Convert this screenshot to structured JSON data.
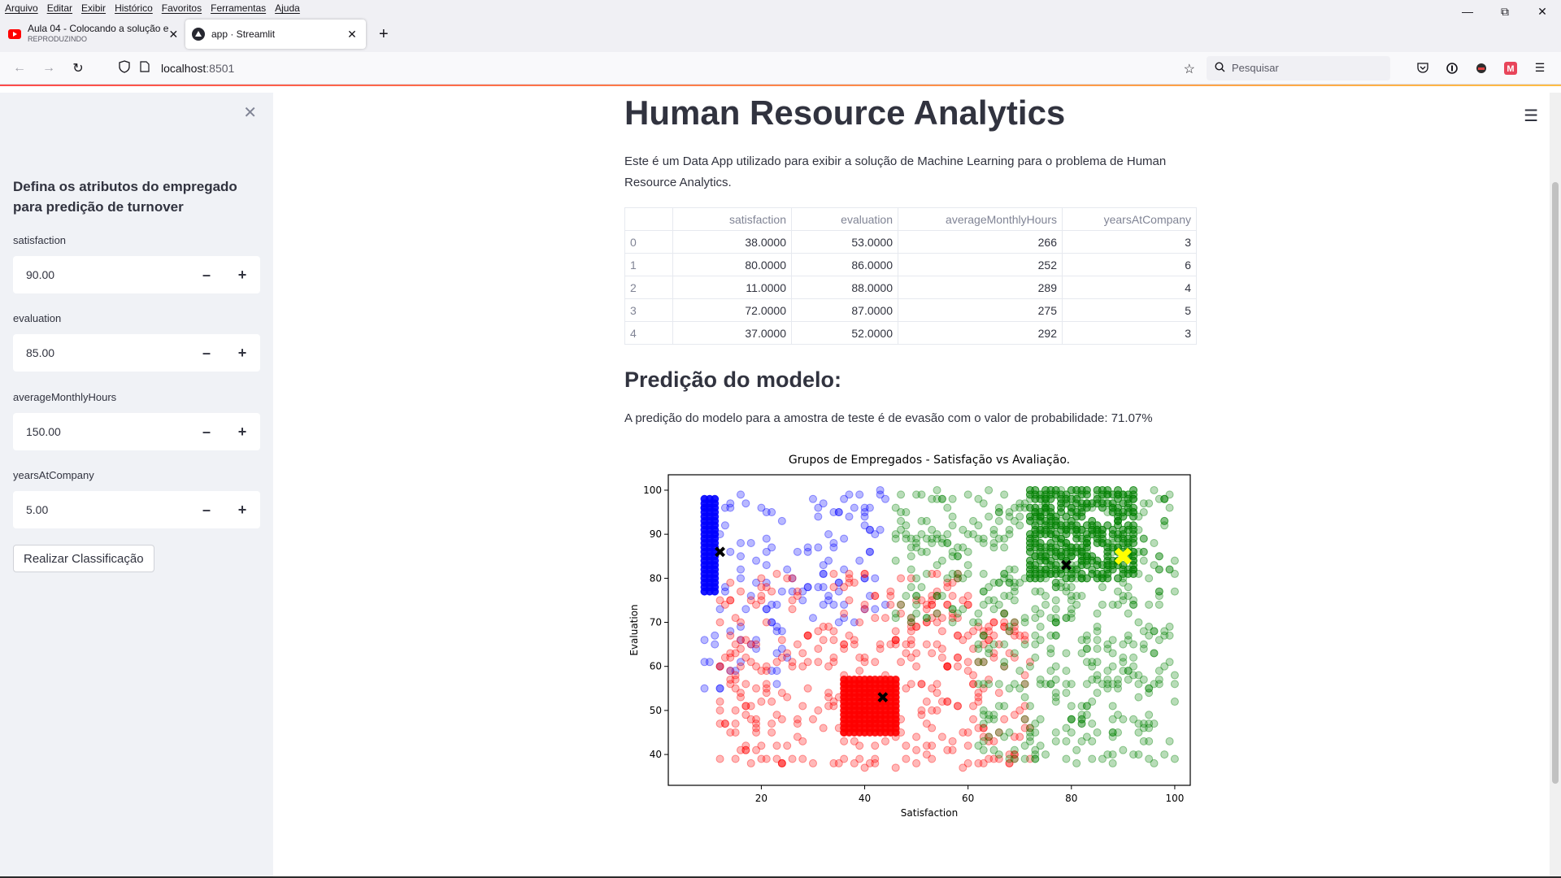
{
  "browser": {
    "menu": [
      "Arquivo",
      "Editar",
      "Exibir",
      "Histórico",
      "Favoritos",
      "Ferramentas",
      "Ajuda"
    ],
    "tabs": [
      {
        "title": "Aula 04 - Colocando a solução e",
        "subtitle": "REPRODUZINDO",
        "icon": "youtube-icon",
        "active": false
      },
      {
        "title": "app · Streamlit",
        "subtitle": "",
        "icon": "streamlit-icon",
        "active": true
      }
    ],
    "url_host": "localhost",
    "url_port": ":8501",
    "search_placeholder": "Pesquisar"
  },
  "sidebar": {
    "title": "Defina os atributos do empregado para predição de turnover",
    "fields": [
      {
        "label": "satisfaction",
        "value": "90.00"
      },
      {
        "label": "evaluation",
        "value": "85.00"
      },
      {
        "label": "averageMonthlyHours",
        "value": "150.00"
      },
      {
        "label": "yearsAtCompany",
        "value": "5.00"
      }
    ],
    "button": "Realizar Classificação"
  },
  "main": {
    "title": "Human Resource Analytics",
    "intro": "Este é um Data App utilizado para exibir a solução de Machine Learning para o problema de Human Resource Analytics.",
    "table": {
      "columns": [
        "",
        "satisfaction",
        "evaluation",
        "averageMonthlyHours",
        "yearsAtCompany"
      ],
      "rows": [
        [
          "0",
          "38.0000",
          "53.0000",
          "266",
          "3"
        ],
        [
          "1",
          "80.0000",
          "86.0000",
          "252",
          "6"
        ],
        [
          "2",
          "11.0000",
          "88.0000",
          "289",
          "4"
        ],
        [
          "3",
          "72.0000",
          "87.0000",
          "275",
          "5"
        ],
        [
          "4",
          "37.0000",
          "52.0000",
          "292",
          "3"
        ]
      ]
    },
    "subheader": "Predição do modelo:",
    "prediction": "A predição do modelo para a amostra de teste é de evasão com o valor de probabilidade: 71.07%"
  },
  "chart_data": {
    "type": "scatter",
    "title": "Grupos de Empregados - Satisfação vs Avaliação.",
    "xlabel": "Satisfaction",
    "ylabel": "Evaluation",
    "xlim": [
      2,
      103
    ],
    "ylim": [
      33,
      103.5
    ],
    "xticks": [
      20,
      40,
      60,
      80,
      100
    ],
    "yticks": [
      40,
      50,
      60,
      70,
      80,
      90,
      100
    ],
    "grid": false,
    "series": [
      {
        "cluster": 0,
        "color": "#0000ff",
        "dense_block": {
          "x": [
            9,
            11
          ],
          "y": [
            77,
            98
          ]
        },
        "spread": {
          "x": [
            9,
            44
          ],
          "y": [
            55,
            100
          ]
        }
      },
      {
        "cluster": 1,
        "color": "#ff0000",
        "dense_block": {
          "x": [
            36,
            46
          ],
          "y": [
            45,
            57
          ]
        },
        "spread": {
          "x": [
            12,
            72
          ],
          "y": [
            37,
            82
          ]
        }
      },
      {
        "cluster": 2,
        "color": "#008000",
        "dense_block": {
          "x": [
            72,
            92
          ],
          "y": [
            80,
            100
          ]
        },
        "spread": {
          "x": [
            46,
            100
          ],
          "y": [
            38,
            100
          ]
        }
      }
    ],
    "centroids": [
      {
        "x": 12,
        "y": 86
      },
      {
        "x": 43.5,
        "y": 53
      },
      {
        "x": 79,
        "y": 83
      }
    ],
    "test_point": {
      "x": 90,
      "y": 85,
      "color": "#ffff00"
    }
  }
}
